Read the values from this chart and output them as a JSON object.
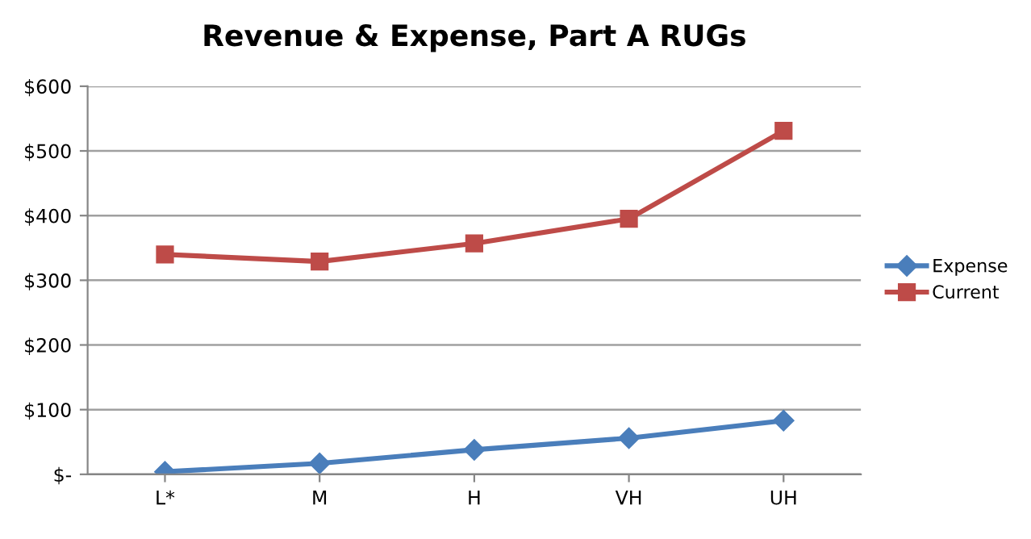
{
  "chart_data": {
    "type": "line",
    "title": "Revenue & Expense, Part A RUGs",
    "categories": [
      "L*",
      "M",
      "H",
      "VH",
      "UH"
    ],
    "series": [
      {
        "name": "Expense",
        "color": "#4a7ebb",
        "marker": "diamond",
        "values": [
          4,
          17,
          38,
          56,
          83
        ]
      },
      {
        "name": "Current",
        "color": "#be4b48",
        "marker": "square",
        "values": [
          340,
          329,
          357,
          395,
          531
        ]
      }
    ],
    "ylim": [
      0,
      600
    ],
    "yticks": [
      {
        "value": 0,
        "label": "$-"
      },
      {
        "value": 100,
        "label": "$100"
      },
      {
        "value": 200,
        "label": "$200"
      },
      {
        "value": 300,
        "label": "$300"
      },
      {
        "value": 400,
        "label": "$400"
      },
      {
        "value": 500,
        "label": "$500"
      },
      {
        "value": 600,
        "label": "$600"
      }
    ],
    "grid": "y",
    "legend": "right",
    "line_style": "solid"
  }
}
